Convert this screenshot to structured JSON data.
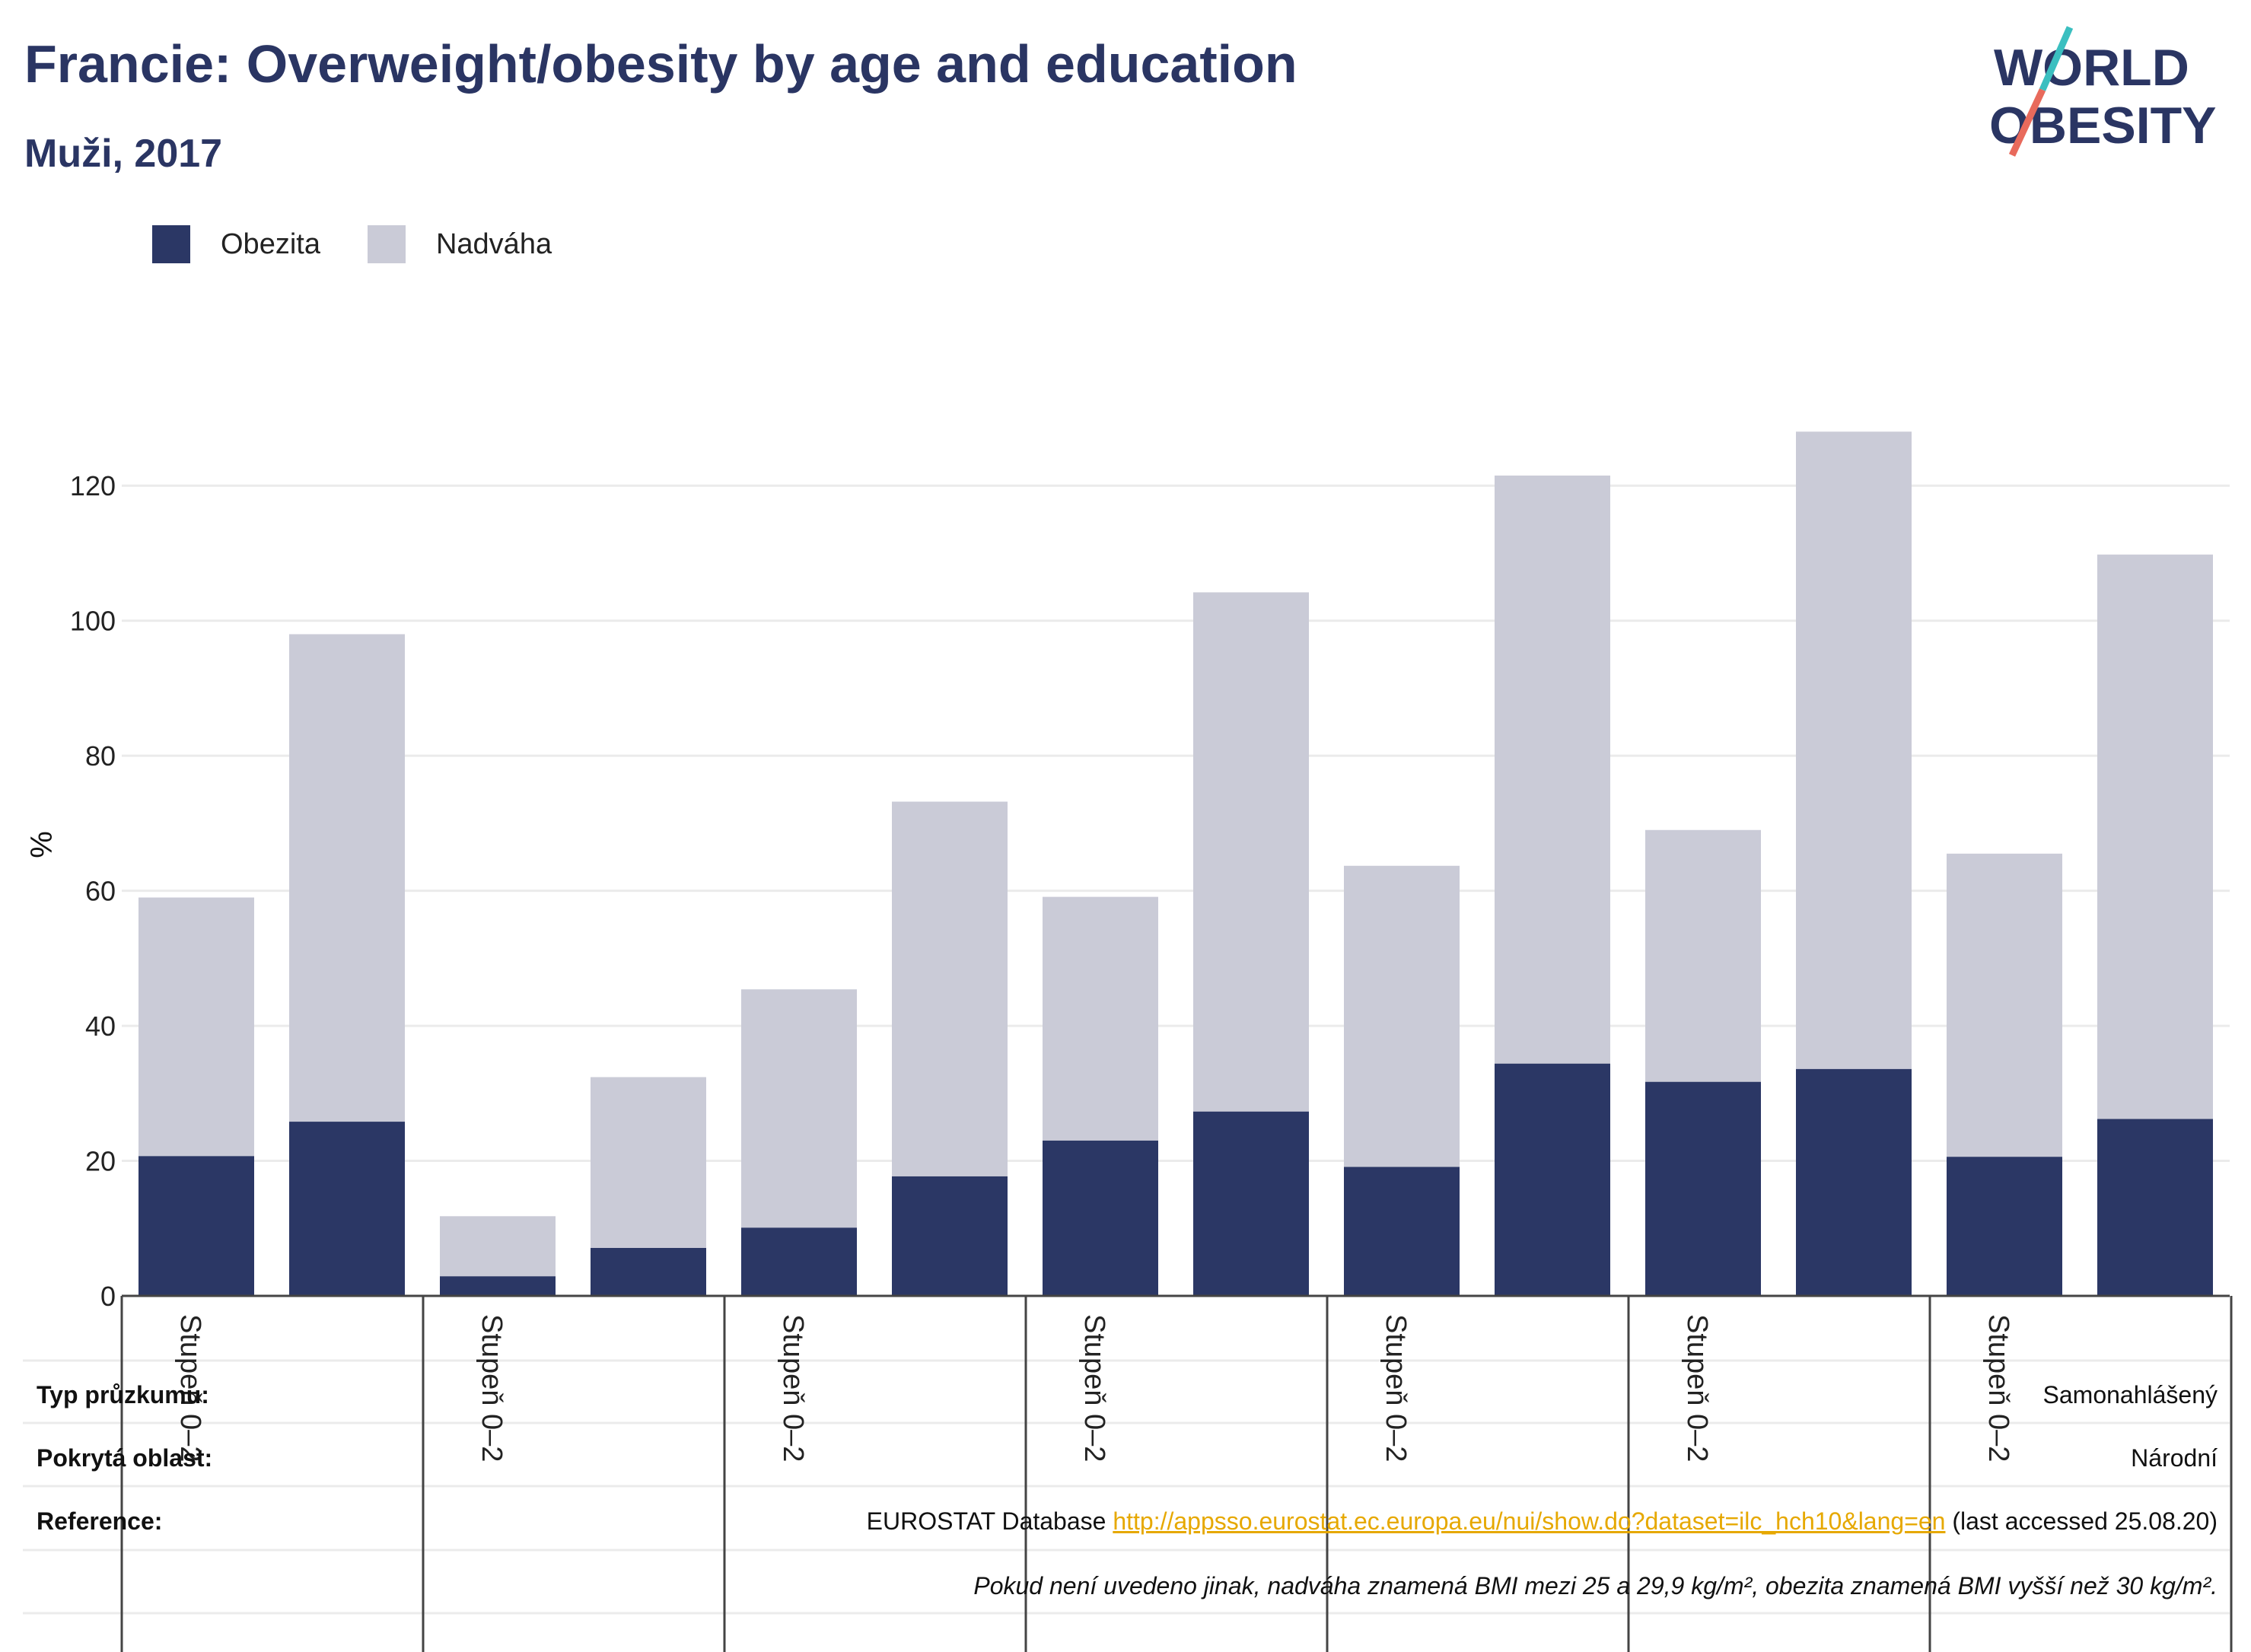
{
  "header": {
    "title": "Francie: Overweight/obesity by age and education",
    "subtitle": "Muži, 2017"
  },
  "logo": {
    "line1": "WORLD",
    "line2": "OBESITY",
    "colors": {
      "text": "#2a3563",
      "slash_teal": "#3bbfc0",
      "slash_coral": "#e86a5c"
    }
  },
  "colors": {
    "obesity": "#2b3765",
    "overweight": "#cacbd7",
    "grid": "#ebebeb",
    "axis": "#444444",
    "link": "#e6a800"
  },
  "chart_data": {
    "type": "bar",
    "stacked": true,
    "ylabel": "%",
    "ylim": [
      0,
      130
    ],
    "yticks": [
      0,
      20,
      40,
      60,
      80,
      100,
      120
    ],
    "grid": true,
    "legend_position": "top-left",
    "group_labels": [
      "Stupeň 0–2",
      "Stupeň 0–2",
      "Stupeň 0–2",
      "Stupeň 0–2",
      "Stupeň 0–2",
      "Stupeň 0–2",
      "Stupeň 0–2"
    ],
    "bars_per_group": 2,
    "series": [
      {
        "name": "Obezita",
        "values": [
          20.7,
          25.8,
          2.9,
          7.1,
          10.1,
          17.7,
          23.0,
          27.3,
          19.1,
          34.4,
          31.7,
          33.6,
          20.6,
          26.2
        ]
      },
      {
        "name": "Nadváha",
        "values": [
          38.3,
          72.2,
          8.9,
          25.3,
          35.3,
          55.5,
          36.1,
          76.9,
          44.6,
          87.1,
          37.3,
          94.4,
          44.9,
          83.6
        ]
      }
    ]
  },
  "info": {
    "survey_type_label": "Typ průzkumu:",
    "survey_type_value": "Samonahlášený",
    "area_label": "Pokrytá oblast:",
    "area_value": "Národní",
    "reference_label": "Reference:",
    "reference_prefix": "EUROSTAT Database ",
    "reference_link": "http://appsso.eurostat.ec.europa.eu/nui/show.do?dataset=ilc_hch10&lang=en",
    "reference_suffix": " (last accessed 25.08.20)",
    "note": "Pokud není uvedeno jinak, nadváha znamená BMI mezi 25 a 29,9 kg/m², obezita znamená BMI vyšší než 30 kg/m²."
  }
}
